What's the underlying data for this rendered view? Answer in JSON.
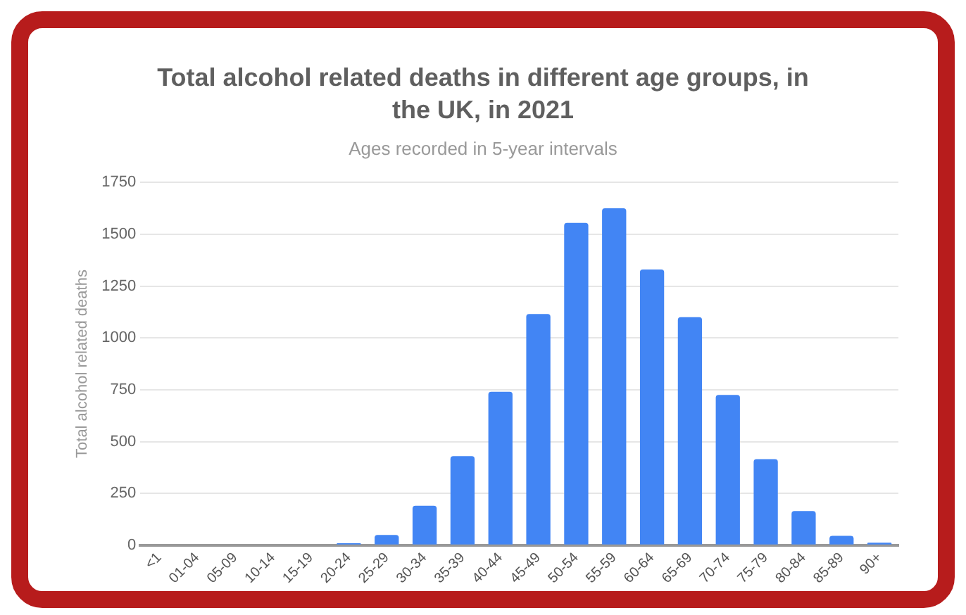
{
  "chart_data": {
    "type": "bar",
    "title": "Total alcohol related deaths in different age groups, in the UK, in 2021",
    "subtitle": "Ages recorded in 5-year intervals",
    "ylabel": "Total alcohol related deaths",
    "categories": [
      "<1",
      "01-04",
      "05-09",
      "10-14",
      "15-19",
      "20-24",
      "25-29",
      "30-34",
      "35-39",
      "40-44",
      "45-49",
      "50-54",
      "55-59",
      "60-64",
      "65-69",
      "70-74",
      "75-79",
      "80-84",
      "85-89",
      "90+"
    ],
    "values": [
      0,
      0,
      0,
      0,
      0,
      10,
      50,
      190,
      430,
      740,
      1115,
      1555,
      1625,
      1330,
      1100,
      725,
      415,
      165,
      45,
      12
    ],
    "color": "#4285f4",
    "ylim": [
      0,
      1750
    ],
    "yticks": [
      0,
      250,
      500,
      750,
      1000,
      1250,
      1500,
      1750
    ],
    "grid": "y",
    "legend": false
  }
}
